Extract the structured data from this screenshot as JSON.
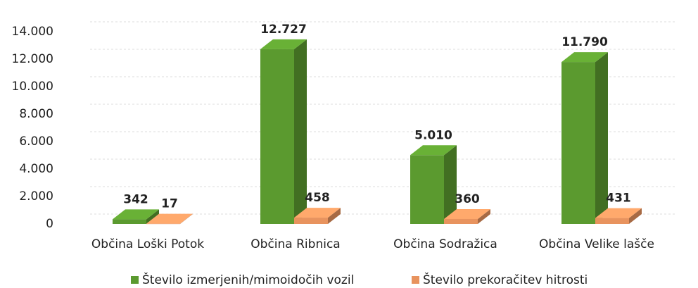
{
  "chart_data": {
    "type": "bar3d",
    "categories": [
      "Občina Loški Potok",
      "Občina Ribnica",
      "Občina Sodražica",
      "Občina Velike lašče"
    ],
    "series": [
      {
        "name": "Število izmerjenih/mimoidočih vozil",
        "color": "#5b9a2f",
        "values": [
          342,
          12727,
          5010,
          11790
        ],
        "value_labels": [
          "342",
          "12.727",
          "5.010",
          "11.790"
        ]
      },
      {
        "name": "Število prekoračitev hitrosti",
        "color": "#e8935e",
        "values": [
          17,
          458,
          360,
          431
        ],
        "value_labels": [
          "17",
          "458",
          "360",
          "431"
        ]
      }
    ],
    "ylim": [
      0,
      14000
    ],
    "yticks": [
      0,
      {
        "value": 2000,
        "label": "2.000"
      },
      {
        "value": 4000,
        "label": "4.000"
      },
      {
        "value": 6000,
        "label": "6.000"
      },
      {
        "value": 8000,
        "label": "8.000"
      },
      {
        "value": 10000,
        "label": "10.000"
      },
      {
        "value": 12000,
        "label": "12.000"
      },
      {
        "value": 14000,
        "label": "14.000"
      }
    ],
    "grid": true
  }
}
